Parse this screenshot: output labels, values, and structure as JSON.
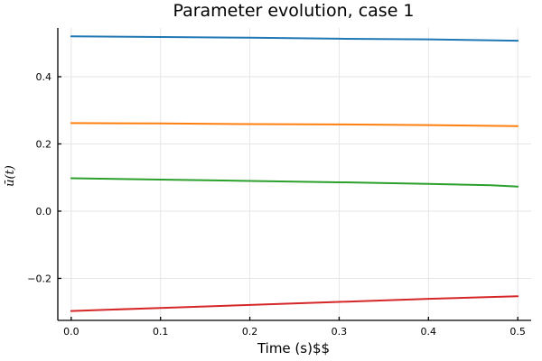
{
  "chart_data": {
    "type": "line",
    "title": "Parameter evolution, case 1",
    "xlabel": "Time (s)$$",
    "ylabel": "ū(t)",
    "xlim": [
      -0.015,
      0.515
    ],
    "ylim": [
      -0.325,
      0.545
    ],
    "xticks": [
      0.0,
      0.1,
      0.2,
      0.3,
      0.4,
      0.5
    ],
    "xtick_labels": [
      "0.0",
      "0.1",
      "0.2",
      "0.3",
      "0.4",
      "0.5"
    ],
    "yticks": [
      -0.2,
      0.0,
      0.2,
      0.4
    ],
    "ytick_labels": [
      "−0.2",
      "0.0",
      "0.2",
      "0.4"
    ],
    "grid": true,
    "series": [
      {
        "color": "#1f77b4",
        "x": [
          0.0,
          0.1,
          0.2,
          0.3,
          0.4,
          0.5
        ],
        "y": [
          0.52,
          0.518,
          0.516,
          0.513,
          0.511,
          0.507
        ]
      },
      {
        "color": "#ff7f0e",
        "x": [
          0.0,
          0.1,
          0.2,
          0.3,
          0.4,
          0.5
        ],
        "y": [
          0.262,
          0.261,
          0.259,
          0.258,
          0.256,
          0.253
        ]
      },
      {
        "color": "#2ca02c",
        "x": [
          0.0,
          0.1,
          0.2,
          0.3,
          0.4,
          0.47,
          0.5
        ],
        "y": [
          0.098,
          0.094,
          0.09,
          0.086,
          0.081,
          0.077,
          0.073
        ]
      },
      {
        "color": "#d62728",
        "x": [
          0.0,
          0.1,
          0.2,
          0.3,
          0.4,
          0.5
        ],
        "y": [
          -0.297,
          -0.288,
          -0.279,
          -0.27,
          -0.261,
          -0.253
        ]
      }
    ]
  }
}
